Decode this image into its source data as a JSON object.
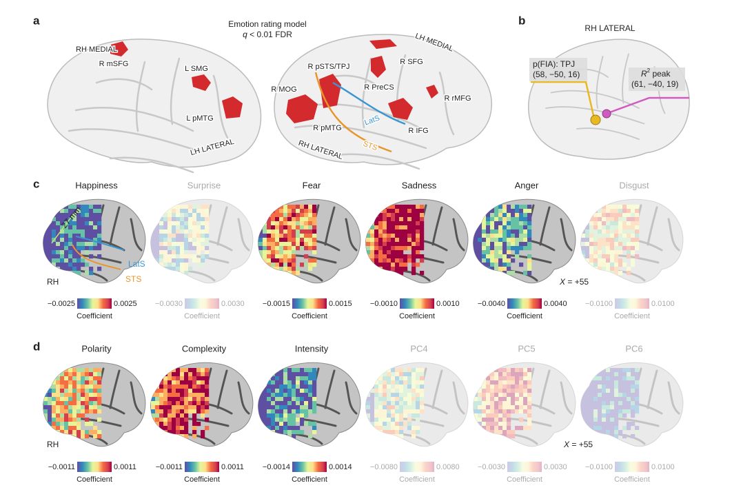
{
  "panel_a": {
    "label": "a",
    "title": "Emotion rating model",
    "subtitle_q": "q",
    "subtitle_rest": " < 0.01 FDR",
    "regions": [
      "RH MEDIAL",
      "R mSFG",
      "L SMG",
      "L pMTG",
      "LH LATERAL",
      "R pSTS/TPJ",
      "R MOG",
      "R PreCS",
      "R SFG",
      "LH MEDIAL",
      "R rMFG",
      "LatS",
      "R pMTG",
      "R IFG",
      "STS",
      "RH LATERAL"
    ]
  },
  "panel_b": {
    "label": "b",
    "view": "RH LATERAL",
    "fia_title": "p(FIA): TPJ",
    "fia_coords": "(58, −50, 16)",
    "r2_symbol": "R",
    "r2_power": "2",
    "r2_rest": " peak",
    "r2_coords": "(61, −40, 19)"
  },
  "panel_c": {
    "label": "c",
    "scale_note": "27 mm",
    "lats": "LatS",
    "sts": "STS",
    "hemisphere": "RH",
    "x_var": "X",
    "x_rest": " = +55",
    "colorbar_label": "Coefficient",
    "maps": [
      {
        "name": "Happiness",
        "faded": false,
        "lim": [
          {
            "value": -0.0025,
            "label": "−0.0025"
          },
          0.0025
        ]
      },
      {
        "name": "Surprise",
        "faded": true,
        "lim": [
          {
            "value": -0.003,
            "label": "−0.0030"
          },
          {
            "value": 0.003,
            "label": "0.0030"
          }
        ]
      },
      {
        "name": "Fear",
        "faded": false,
        "lim": [
          {
            "value": -0.0015,
            "label": "−0.0015"
          },
          0.0015
        ]
      },
      {
        "name": "Sadness",
        "faded": false,
        "lim": [
          {
            "value": -0.001,
            "label": "−0.0010"
          },
          {
            "value": 0.001,
            "label": "0.0010"
          }
        ]
      },
      {
        "name": "Anger",
        "faded": false,
        "lim": [
          {
            "value": -0.004,
            "label": "−0.0040"
          },
          {
            "value": 0.004,
            "label": "0.0040"
          }
        ]
      },
      {
        "name": "Disgust",
        "faded": true,
        "lim": [
          {
            "value": -0.01,
            "label": "−0.0100"
          },
          {
            "value": 0.01,
            "label": "0.0100"
          }
        ]
      }
    ]
  },
  "panel_d": {
    "label": "d",
    "hemisphere": "RH",
    "x_var": "X",
    "x_rest": " = +55",
    "colorbar_label": "Coefficient",
    "maps": [
      {
        "name": "Polarity",
        "faded": false,
        "lim": [
          {
            "value": -0.0011,
            "label": "−0.0011"
          },
          0.0011
        ]
      },
      {
        "name": "Complexity",
        "faded": false,
        "lim": [
          {
            "value": -0.0011,
            "label": "−0.0011"
          },
          0.0011
        ]
      },
      {
        "name": "Intensity",
        "faded": false,
        "lim": [
          {
            "value": -0.0014,
            "label": "−0.0014"
          },
          0.0014
        ]
      },
      {
        "name": "PC4",
        "faded": true,
        "lim": [
          {
            "value": -0.008,
            "label": "−0.0080"
          },
          {
            "value": 0.008,
            "label": "0.0080"
          }
        ]
      },
      {
        "name": "PC5",
        "faded": true,
        "lim": [
          {
            "value": -0.003,
            "label": "−0.0030"
          },
          {
            "value": 0.003,
            "label": "0.0030"
          }
        ]
      },
      {
        "name": "PC6",
        "faded": true,
        "lim": [
          {
            "value": -0.01,
            "label": "−0.0100"
          },
          {
            "value": 0.01,
            "label": "0.0100"
          }
        ]
      }
    ]
  }
}
